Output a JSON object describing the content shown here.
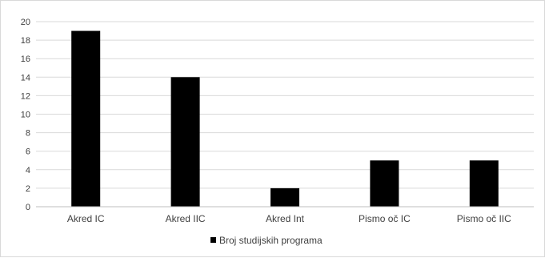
{
  "chart_data": {
    "type": "bar",
    "title": "",
    "xlabel": "",
    "ylabel": "",
    "categories": [
      "Akred IC",
      "Akred IIC",
      "Akred Int",
      "Pismo oč IC",
      "Pismo oč IIC"
    ],
    "series": [
      {
        "name": "Broj studijskih programa",
        "values": [
          19,
          14,
          2,
          5,
          5
        ],
        "color": "#000000"
      }
    ],
    "ylim": [
      0,
      20
    ],
    "yticks": [
      0,
      2,
      4,
      6,
      8,
      10,
      12,
      14,
      16,
      18,
      20
    ],
    "grid": true,
    "legend_position": "bottom-center",
    "colors": {
      "gridline": "#d9d9d9",
      "axis": "#bfbfbf",
      "text": "#404040"
    }
  }
}
